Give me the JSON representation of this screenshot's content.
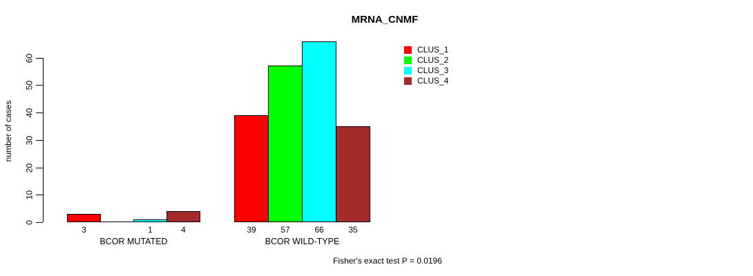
{
  "title": "MRNA_CNMF",
  "y_axis": {
    "label": "number of cases",
    "ticks": [
      0,
      10,
      20,
      30,
      40,
      50,
      60
    ]
  },
  "footer": "Fisher's exact test P = 0.0196",
  "legend": {
    "items": [
      {
        "label": "CLUS_1",
        "color": "#FF0000"
      },
      {
        "label": "CLUS_2",
        "color": "#00FF00"
      },
      {
        "label": "CLUS_3",
        "color": "#00FFFF"
      },
      {
        "label": "CLUS_4",
        "color": "#A52A2A"
      }
    ]
  },
  "chart_data": {
    "type": "bar",
    "title": "MRNA_CNMF",
    "ylabel": "number of cases",
    "xlabel": "",
    "categories": [
      "BCOR MUTATED",
      "BCOR WILD-TYPE"
    ],
    "series": [
      {
        "name": "CLUS_1",
        "color": "#FF0000",
        "values": [
          3,
          39
        ]
      },
      {
        "name": "CLUS_2",
        "color": "#00FF00",
        "values": [
          0,
          57
        ]
      },
      {
        "name": "CLUS_3",
        "color": "#00FFFF",
        "values": [
          1,
          66
        ]
      },
      {
        "name": "CLUS_4",
        "color": "#A52A2A",
        "values": [
          4,
          35
        ]
      }
    ],
    "bar_value_labels": [
      [
        "3",
        "",
        "1",
        "4"
      ],
      [
        "39",
        "57",
        "66",
        "35"
      ]
    ],
    "yticks": [
      0,
      10,
      20,
      30,
      40,
      50,
      60
    ],
    "ylim": [
      0,
      66
    ],
    "grid": false,
    "legend_position": "top-right",
    "annotation": "Fisher's exact test P = 0.0196"
  }
}
